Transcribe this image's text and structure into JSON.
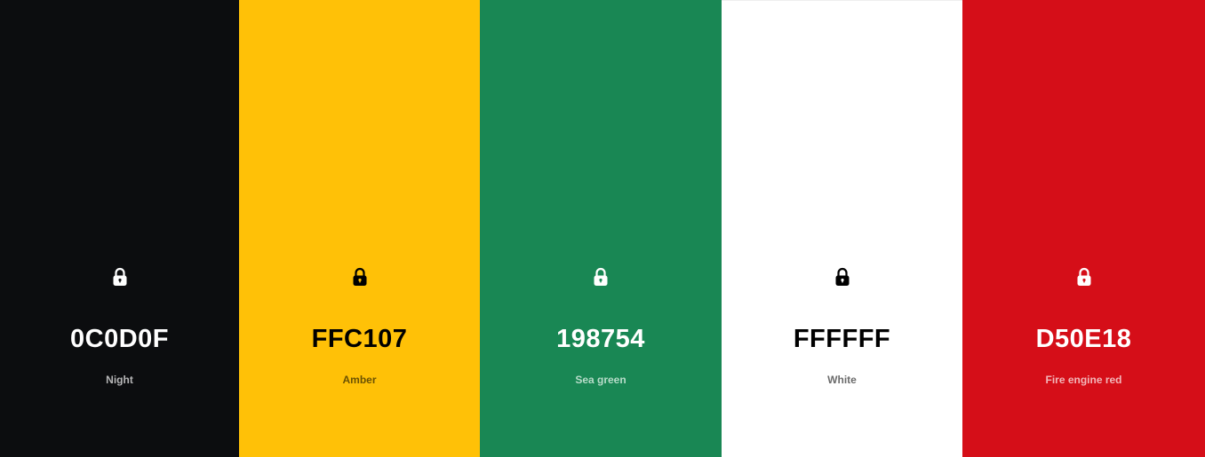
{
  "palette": {
    "swatches": [
      {
        "hex": "0C0D0F",
        "name": "Night",
        "bg": "#0C0D0F",
        "fg": "#FFFFFF",
        "name_color": "#B6B6B7",
        "lock_color": "#FFFFFF",
        "lock_icon": "lock-icon"
      },
      {
        "hex": "FFC107",
        "name": "Amber",
        "bg": "#FFC107",
        "fg": "#000000",
        "name_color": "#6B5203",
        "lock_color": "#000000",
        "lock_icon": "lock-icon"
      },
      {
        "hex": "198754",
        "name": "Sea green",
        "bg": "#198754",
        "fg": "#FFFFFF",
        "name_color": "#B7DCC9",
        "lock_color": "#FFFFFF",
        "lock_icon": "lock-icon"
      },
      {
        "hex": "FFFFFF",
        "name": "White",
        "bg": "#FFFFFF",
        "fg": "#000000",
        "name_color": "#6B6B6B",
        "lock_color": "#000000",
        "lock_icon": "lock-icon"
      },
      {
        "hex": "D50E18",
        "name": "Fire engine red",
        "bg": "#D50E18",
        "fg": "#FFFFFF",
        "name_color": "#F2B6B9",
        "lock_color": "#FFFFFF",
        "lock_icon": "lock-icon"
      }
    ]
  }
}
